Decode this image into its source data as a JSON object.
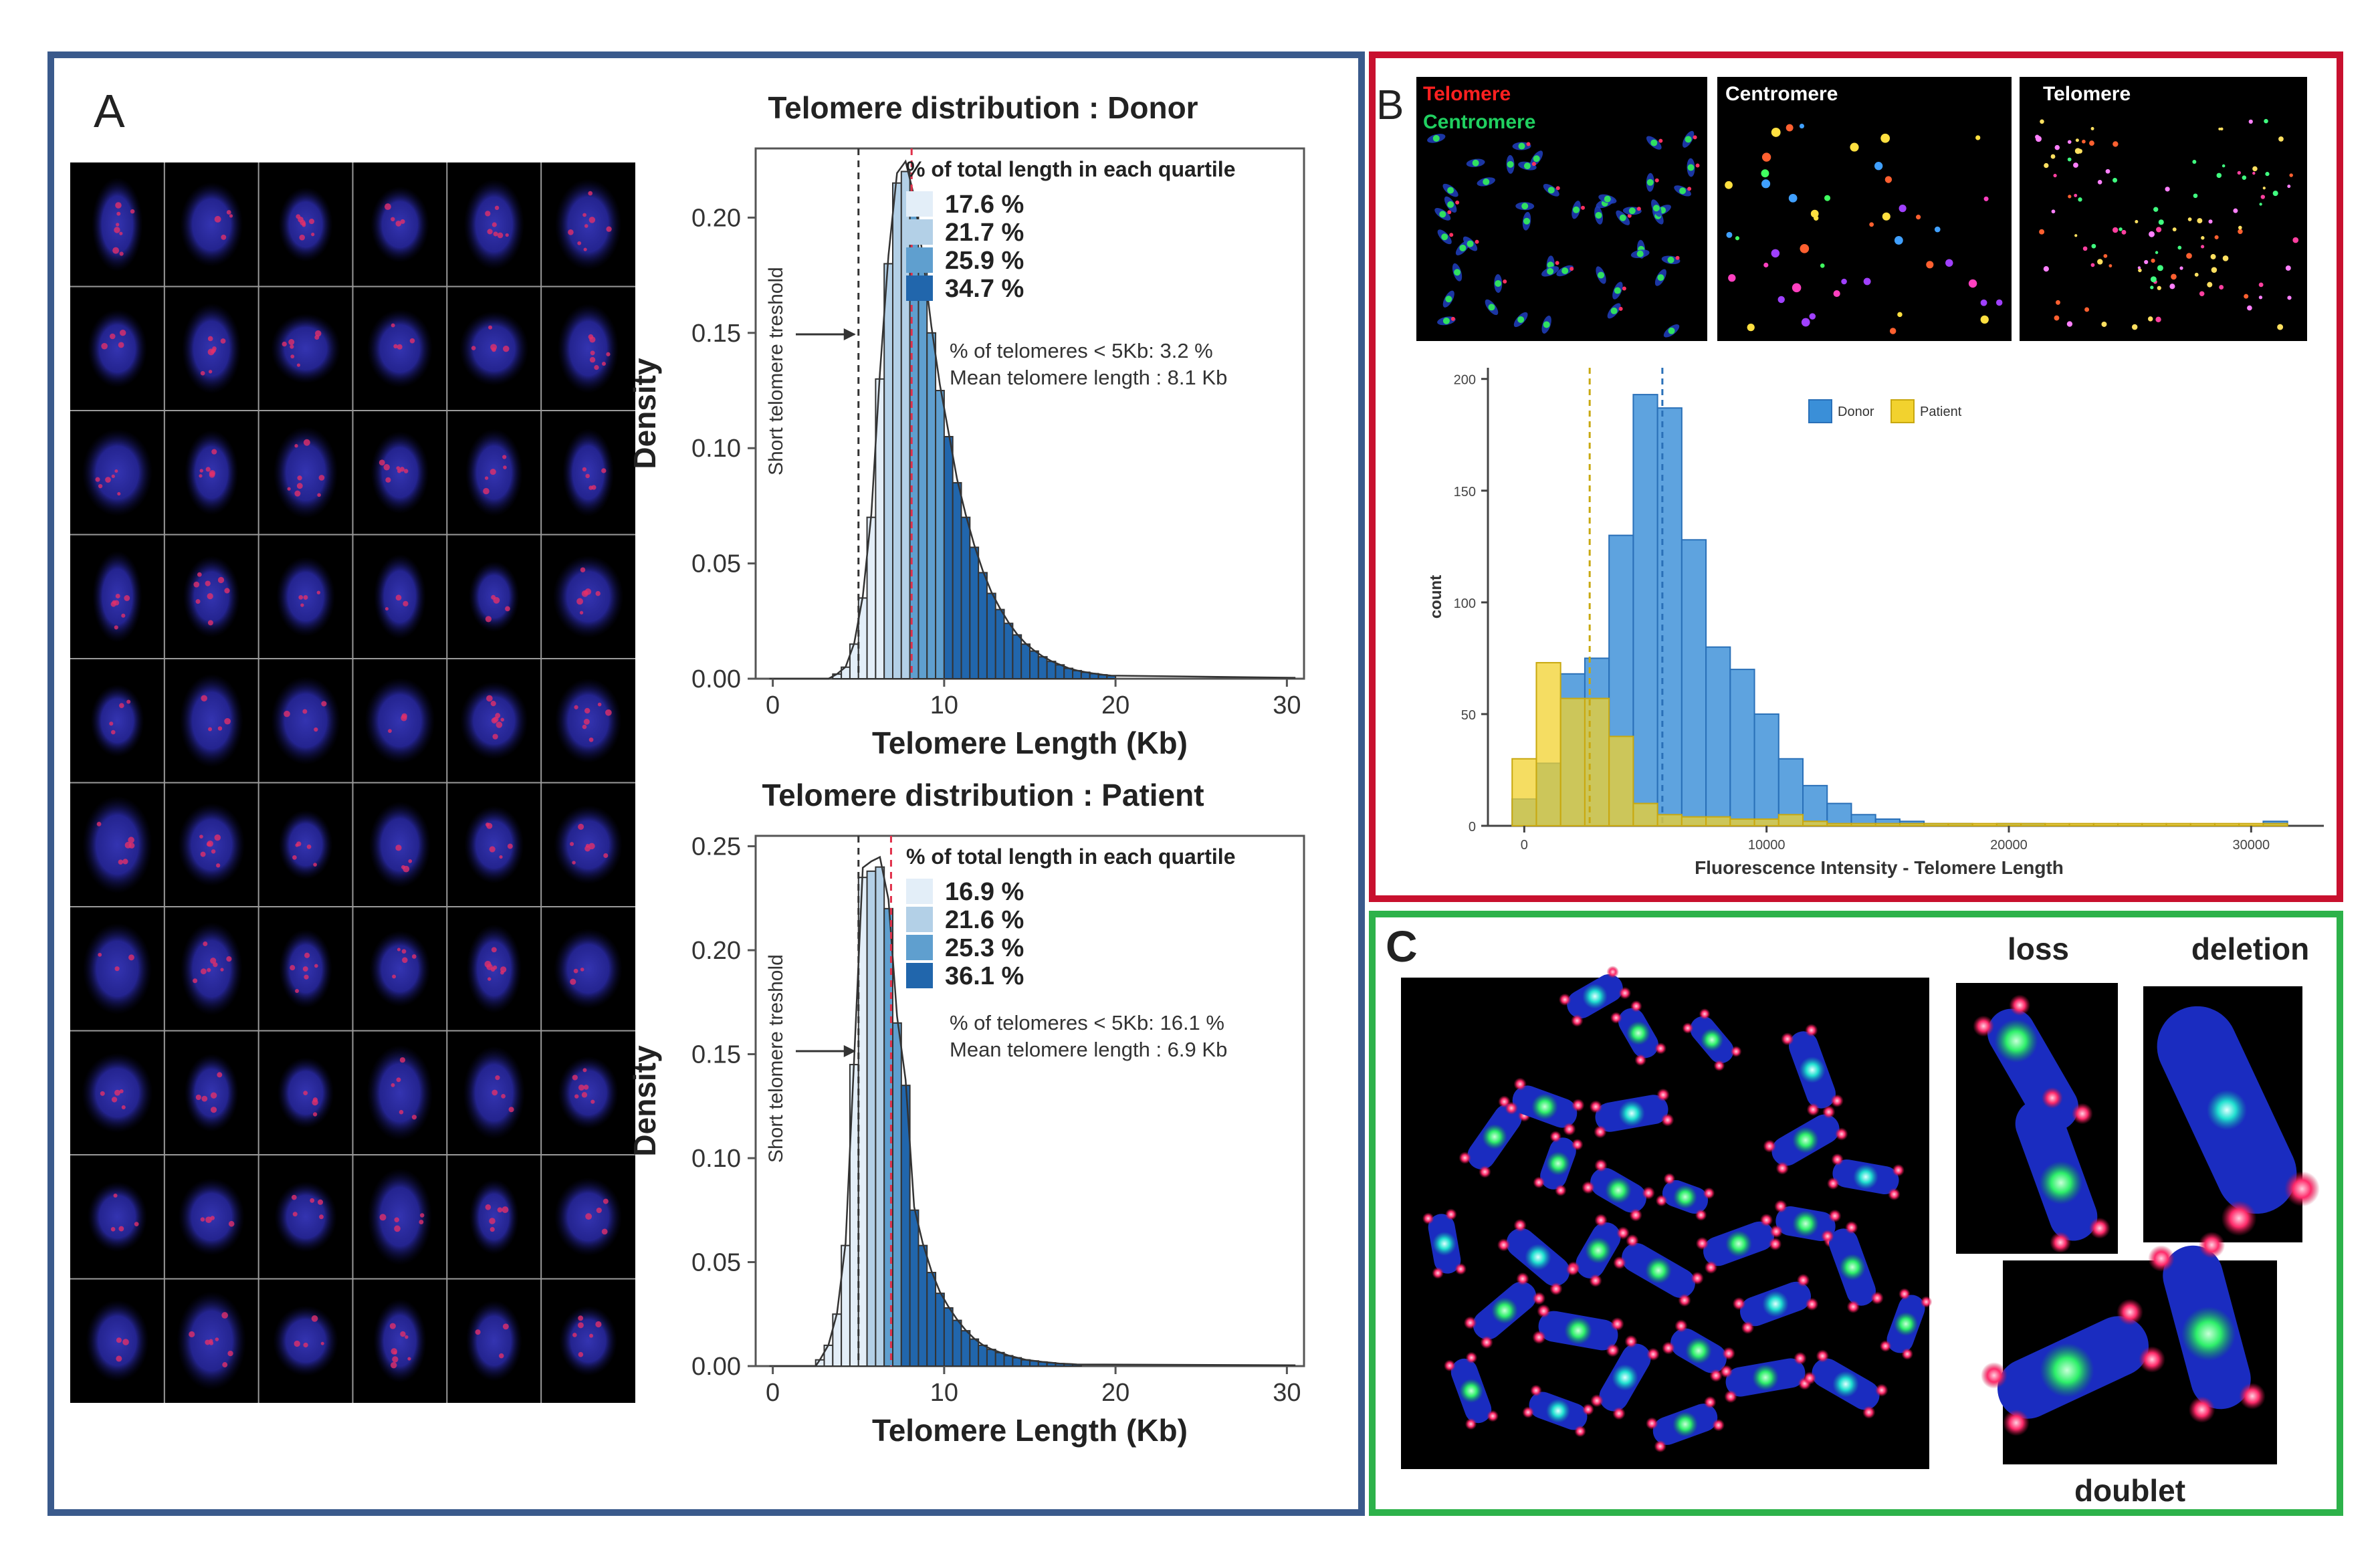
{
  "panels": {
    "A": {
      "letter": "A",
      "grid": {
        "rows": 10,
        "cols": 6
      },
      "charts": [
        {
          "id": "donor",
          "title": "Telomere distribution : Donor",
          "quartile_header": "% of total length in each quartile",
          "quartiles": [
            "17.6 %",
            "21.7 %",
            "25.9 %",
            "34.7 %"
          ],
          "stats": [
            "% of telomeres < 5Kb: 3.2 %",
            "Mean telomere length : 8.1 Kb"
          ],
          "threshold_label": "Short telomere treshold",
          "xlabel": "Telomere Length (Kb)",
          "ylabel": "Density",
          "ylim": [
            0,
            0.23
          ],
          "yticks": [
            0.0,
            0.05,
            0.1,
            0.15,
            0.2
          ],
          "ytick_labels": [
            "0.00",
            "0.05",
            "0.10",
            "0.15",
            "0.20"
          ],
          "threshold": 5,
          "mean": 8.1
        },
        {
          "id": "patient",
          "title": "Telomere distribution : Patient",
          "quartile_header": "% of total length in each quartile",
          "quartiles": [
            "16.9 %",
            "21.6 %",
            "25.3 %",
            "36.1 %"
          ],
          "stats": [
            "% of telomeres < 5Kb: 16.1 %",
            "Mean telomere length : 6.9 Kb"
          ],
          "threshold_label": "Short telomere treshold",
          "xlabel": "Telomere Length (Kb)",
          "ylabel": "Density",
          "ylim": [
            0,
            0.255
          ],
          "yticks": [
            0.0,
            0.05,
            0.1,
            0.15,
            0.2,
            0.25
          ],
          "ytick_labels": [
            "0.00",
            "0.05",
            "0.10",
            "0.15",
            "0.20",
            "0.25"
          ],
          "threshold": 5,
          "mean": 6.9
        }
      ]
    },
    "B": {
      "letter": "B",
      "image_labels": {
        "merged_line1": "Telomere",
        "merged_line2": "Centromere",
        "centromere": "Centromere",
        "telomere": "Telomere"
      },
      "legend": [
        "Donor",
        "Patient"
      ],
      "xlabel": "Fluorescence Intensity - Telomere Length",
      "ylabel": "count",
      "ytick_labels": [
        "0",
        "50",
        "100",
        "150",
        "200"
      ],
      "xtick_labels": [
        "0",
        "10000",
        "20000",
        "30000"
      ]
    },
    "C": {
      "letter": "C",
      "labels": {
        "loss": "loss",
        "deletion": "deletion",
        "doublet": "doublet"
      }
    }
  },
  "colors": {
    "panelA_border": "#3a5a8c",
    "panelB_border": "#c8102e",
    "panelC_border": "#2db24a",
    "q1": "#e3eef8",
    "q2": "#b3d0e7",
    "q3": "#5f9fcf",
    "q4": "#2166ac",
    "donor": "#3a8fd8",
    "patient": "#f2d22e",
    "threshold_line": "#333333",
    "mean_line": "#e0304a"
  },
  "chart_data": [
    {
      "type": "bar",
      "title": "Telomere distribution : Donor",
      "xlabel": "Telomere Length (Kb)",
      "ylabel": "Density",
      "xlim": [
        -1,
        31
      ],
      "ylim": [
        0,
        0.23
      ],
      "xticks": [
        0,
        10,
        20,
        30
      ],
      "bin_width": 0.5,
      "bin_start": 2.5,
      "density": [
        0.0,
        0.0,
        0.002,
        0.005,
        0.015,
        0.035,
        0.07,
        0.13,
        0.18,
        0.215,
        0.22,
        0.205,
        0.18,
        0.15,
        0.125,
        0.105,
        0.085,
        0.07,
        0.057,
        0.046,
        0.037,
        0.03,
        0.024,
        0.019,
        0.015,
        0.012,
        0.0095,
        0.0075,
        0.006,
        0.0045,
        0.0035,
        0.0028,
        0.0022,
        0.0017,
        0.0013
      ],
      "quartile_breaks": [
        6.5,
        8.0,
        9.8
      ],
      "threshold": 5,
      "mean": 8.1,
      "quartile_percent": [
        17.6,
        21.7,
        25.9,
        34.7
      ]
    },
    {
      "type": "bar",
      "title": "Telomere distribution : Patient",
      "xlabel": "Telomere Length (Kb)",
      "ylabel": "Density",
      "xlim": [
        -1,
        31
      ],
      "ylim": [
        0,
        0.255
      ],
      "xticks": [
        0,
        10,
        20,
        30
      ],
      "bin_width": 0.5,
      "bin_start": 2.5,
      "density": [
        0.003,
        0.01,
        0.025,
        0.058,
        0.145,
        0.235,
        0.238,
        0.24,
        0.22,
        0.165,
        0.135,
        0.075,
        0.058,
        0.045,
        0.035,
        0.028,
        0.022,
        0.017,
        0.013,
        0.01,
        0.008,
        0.0065,
        0.005,
        0.004,
        0.003,
        0.0025,
        0.002,
        0.0016,
        0.0012,
        0.001,
        0.0008
      ],
      "quartile_breaks": [
        5.6,
        6.5,
        7.5
      ],
      "threshold": 5,
      "mean": 6.9,
      "quartile_percent": [
        16.9,
        21.6,
        25.3,
        36.1
      ]
    },
    {
      "type": "bar",
      "title": "",
      "xlabel": "Fluorescence Intensity - Telomere Length",
      "ylabel": "count",
      "xlim": [
        -1500,
        33000
      ],
      "ylim": [
        0,
        205
      ],
      "xticks": [
        0,
        10000,
        20000,
        30000
      ],
      "yticks": [
        0,
        50,
        100,
        150,
        200
      ],
      "bin_width": 1000,
      "bin_start": -500,
      "series": [
        {
          "name": "Donor",
          "values": [
            12,
            28,
            68,
            75,
            130,
            193,
            187,
            128,
            80,
            70,
            50,
            30,
            18,
            10,
            5,
            3,
            2,
            1,
            1,
            0,
            1,
            1,
            0,
            0,
            0,
            0,
            0,
            0,
            0,
            0,
            0,
            2
          ],
          "mean": 5700
        },
        {
          "name": "Patient",
          "values": [
            30,
            73,
            57,
            57,
            40,
            10,
            5,
            4,
            4,
            3,
            3,
            5,
            2,
            1,
            1,
            1,
            1,
            1,
            1,
            1,
            1,
            1,
            1,
            1,
            1,
            1,
            1,
            1,
            1,
            1,
            1,
            1
          ],
          "mean": 2700
        }
      ]
    }
  ]
}
